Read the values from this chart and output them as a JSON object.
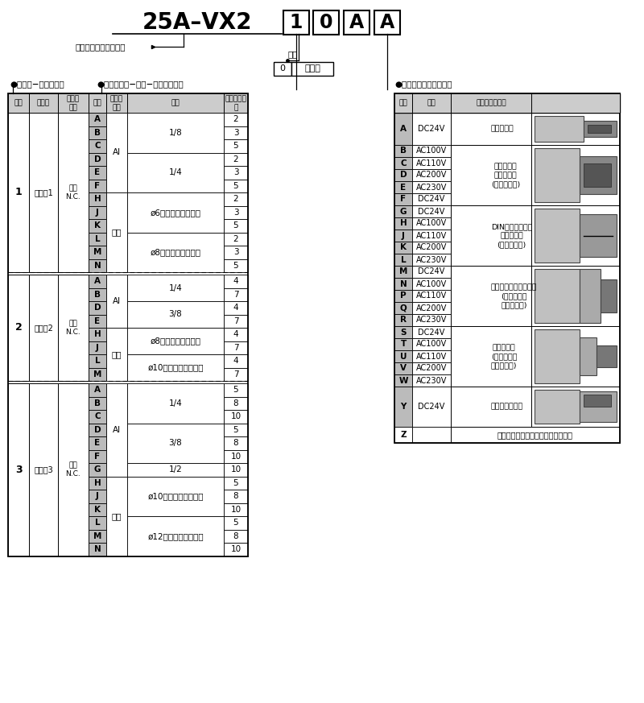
{
  "title_base": "25A–VX2",
  "title_box1": "1",
  "title_box2": "0",
  "title_box3": "A",
  "title_box4": "A",
  "series_label": "二次電池対応シリーズ",
  "fluid_label": "流体",
  "fluid_code": "0",
  "fluid_name": "空気用",
  "left_title": "●サイズ−流体弁形式",
  "right_title": "●ボディ材質−口径−オリフィス径",
  "lh0": "記号",
  "lh1": "サイズ",
  "lh2": "流体弁\n形式",
  "rh0": "記号",
  "rh1": "ボディ\n材質",
  "rh2": "口径",
  "rh3": "オリフィス\n径",
  "s1_label": "1",
  "s1_size": "サイズ1",
  "s1_type": "単体\nN.C.",
  "s2_label": "2",
  "s2_size": "サイズ2",
  "s2_type": "単体\nN.C.",
  "s3_label": "3",
  "s3_size": "サイズ3",
  "s3_type": "単体\nN.C.",
  "s1_codes": [
    "A",
    "B",
    "C",
    "D",
    "E",
    "F",
    "H",
    "J",
    "K",
    "L",
    "M",
    "N"
  ],
  "s1_mat": [
    "Al",
    "Al",
    "Al",
    "Al",
    "Al",
    "Al",
    "樹脂",
    "樹脂",
    "樹脂",
    "樹脂",
    "樹脂",
    "樹脂"
  ],
  "s1_port": [
    "1/8",
    "1/8",
    "1/8",
    "1/4",
    "1/4",
    "1/4",
    "ø6ワンタッチ管継手",
    "ø6ワンタッチ管継手",
    "ø6ワンタッチ管継手",
    "ø8ワンタッチ管継手",
    "ø8ワンタッチ管継手",
    "ø8ワンタッチ管継手"
  ],
  "s1_ori": [
    "2",
    "3",
    "5",
    "2",
    "3",
    "5",
    "2",
    "3",
    "5",
    "2",
    "3",
    "5"
  ],
  "s2_codes": [
    "A",
    "B",
    "D",
    "E",
    "H",
    "J",
    "L",
    "M"
  ],
  "s2_mat": [
    "Al",
    "Al",
    "Al",
    "Al",
    "樹脂",
    "樹脂",
    "樹脂",
    "樹脂"
  ],
  "s2_port": [
    "1/4",
    "1/4",
    "3/8",
    "3/8",
    "ø8ワンタッチ管継手",
    "ø8ワンタッチ管継手",
    "ø10ワンタッチ管継手",
    "ø10ワンタッチ管継手"
  ],
  "s2_ori": [
    "4",
    "7",
    "4",
    "7",
    "4",
    "7",
    "4",
    "7"
  ],
  "s3_codes": [
    "A",
    "B",
    "C",
    "D",
    "E",
    "F",
    "G",
    "H",
    "J",
    "K",
    "L",
    "M",
    "N"
  ],
  "s3_mat": [
    "Al",
    "Al",
    "Al",
    "Al",
    "Al",
    "Al",
    "Al",
    "樹脂",
    "樹脂",
    "樹脂",
    "樹脂",
    "樹脂",
    "樹脂"
  ],
  "s3_port": [
    "1/4",
    "1/4",
    "1/4",
    "3/8",
    "3/8",
    "3/8",
    "1/2",
    "ø10ワンタッチ管継手",
    "ø10ワンタッチ管継手",
    "ø10ワンタッチ管継手",
    "ø12ワンタッチ管継手",
    "ø12ワンタッチ管継手",
    "ø12ワンタッチ管継手"
  ],
  "s3_ori": [
    "5",
    "8",
    "10",
    "5",
    "8",
    "10",
    "10",
    "5",
    "8",
    "10",
    "5",
    "8",
    "10"
  ],
  "vt_title": "●電圧－リード線取出し",
  "vh0": "記号",
  "vh1": "電圧",
  "vh2": "リード線取出し",
  "vg_codes": [
    [
      "A"
    ],
    [
      "B",
      "C",
      "D",
      "E",
      "F"
    ],
    [
      "G",
      "H",
      "J",
      "K",
      "L"
    ],
    [
      "M",
      "N",
      "P",
      "Q",
      "R"
    ],
    [
      "S",
      "T",
      "U",
      "V",
      "W"
    ],
    [
      "Y"
    ],
    [
      "Z"
    ]
  ],
  "vg_volts": [
    [
      "DC24V"
    ],
    [
      "AC100V",
      "AC110V",
      "AC200V",
      "AC230V",
      "DC24V"
    ],
    [
      "DC24V",
      "AC100V",
      "AC110V",
      "AC200V",
      "AC230V"
    ],
    [
      "DC24V",
      "AC100V",
      "AC110V",
      "AC200V",
      "AC230V"
    ],
    [
      "DC24V",
      "AC100V",
      "AC110V",
      "AC200V",
      "AC230V"
    ],
    [
      "DC24V"
    ],
    [
      ""
    ]
  ],
  "vg_conn": [
    "グロメット",
    "グロメット\nサージ電圧\n(保護回路付)",
    "DIN形ターミナル\nサージ電圧\n(保護回路付)",
    "コンジットターミナル\n(サージ電圧\n保護回路付)",
    "コンジット\n(サージ電圧\n保護回路付)",
    "平形ターミナル",
    "その他の電圧および電気オプション"
  ],
  "bg": "#ffffff",
  "hdr_bg": "#cccccc",
  "code_bg": "#bbbbbb",
  "sep_bg": "#e8e8e8"
}
